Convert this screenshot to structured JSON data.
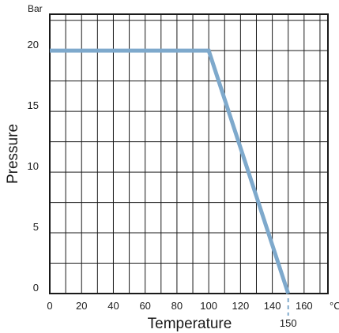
{
  "chart_data": {
    "type": "line",
    "xlabel": "Temperature",
    "ylabel": "Pressure",
    "x_unit": "°C",
    "y_unit": "Bar",
    "xlim": [
      0,
      175
    ],
    "ylim": [
      0,
      23
    ],
    "x_ticks": [
      0,
      20,
      40,
      60,
      80,
      100,
      120,
      140,
      160
    ],
    "y_ticks": [
      0,
      5,
      10,
      15,
      20
    ],
    "grid": true,
    "series": [
      {
        "x": [
          0,
          100,
          150
        ],
        "y": [
          20,
          20,
          0
        ],
        "color": "#7ea9cc"
      }
    ],
    "annotations": [
      {
        "x": 150,
        "text": "150",
        "color": "#7ea9cc"
      }
    ]
  }
}
